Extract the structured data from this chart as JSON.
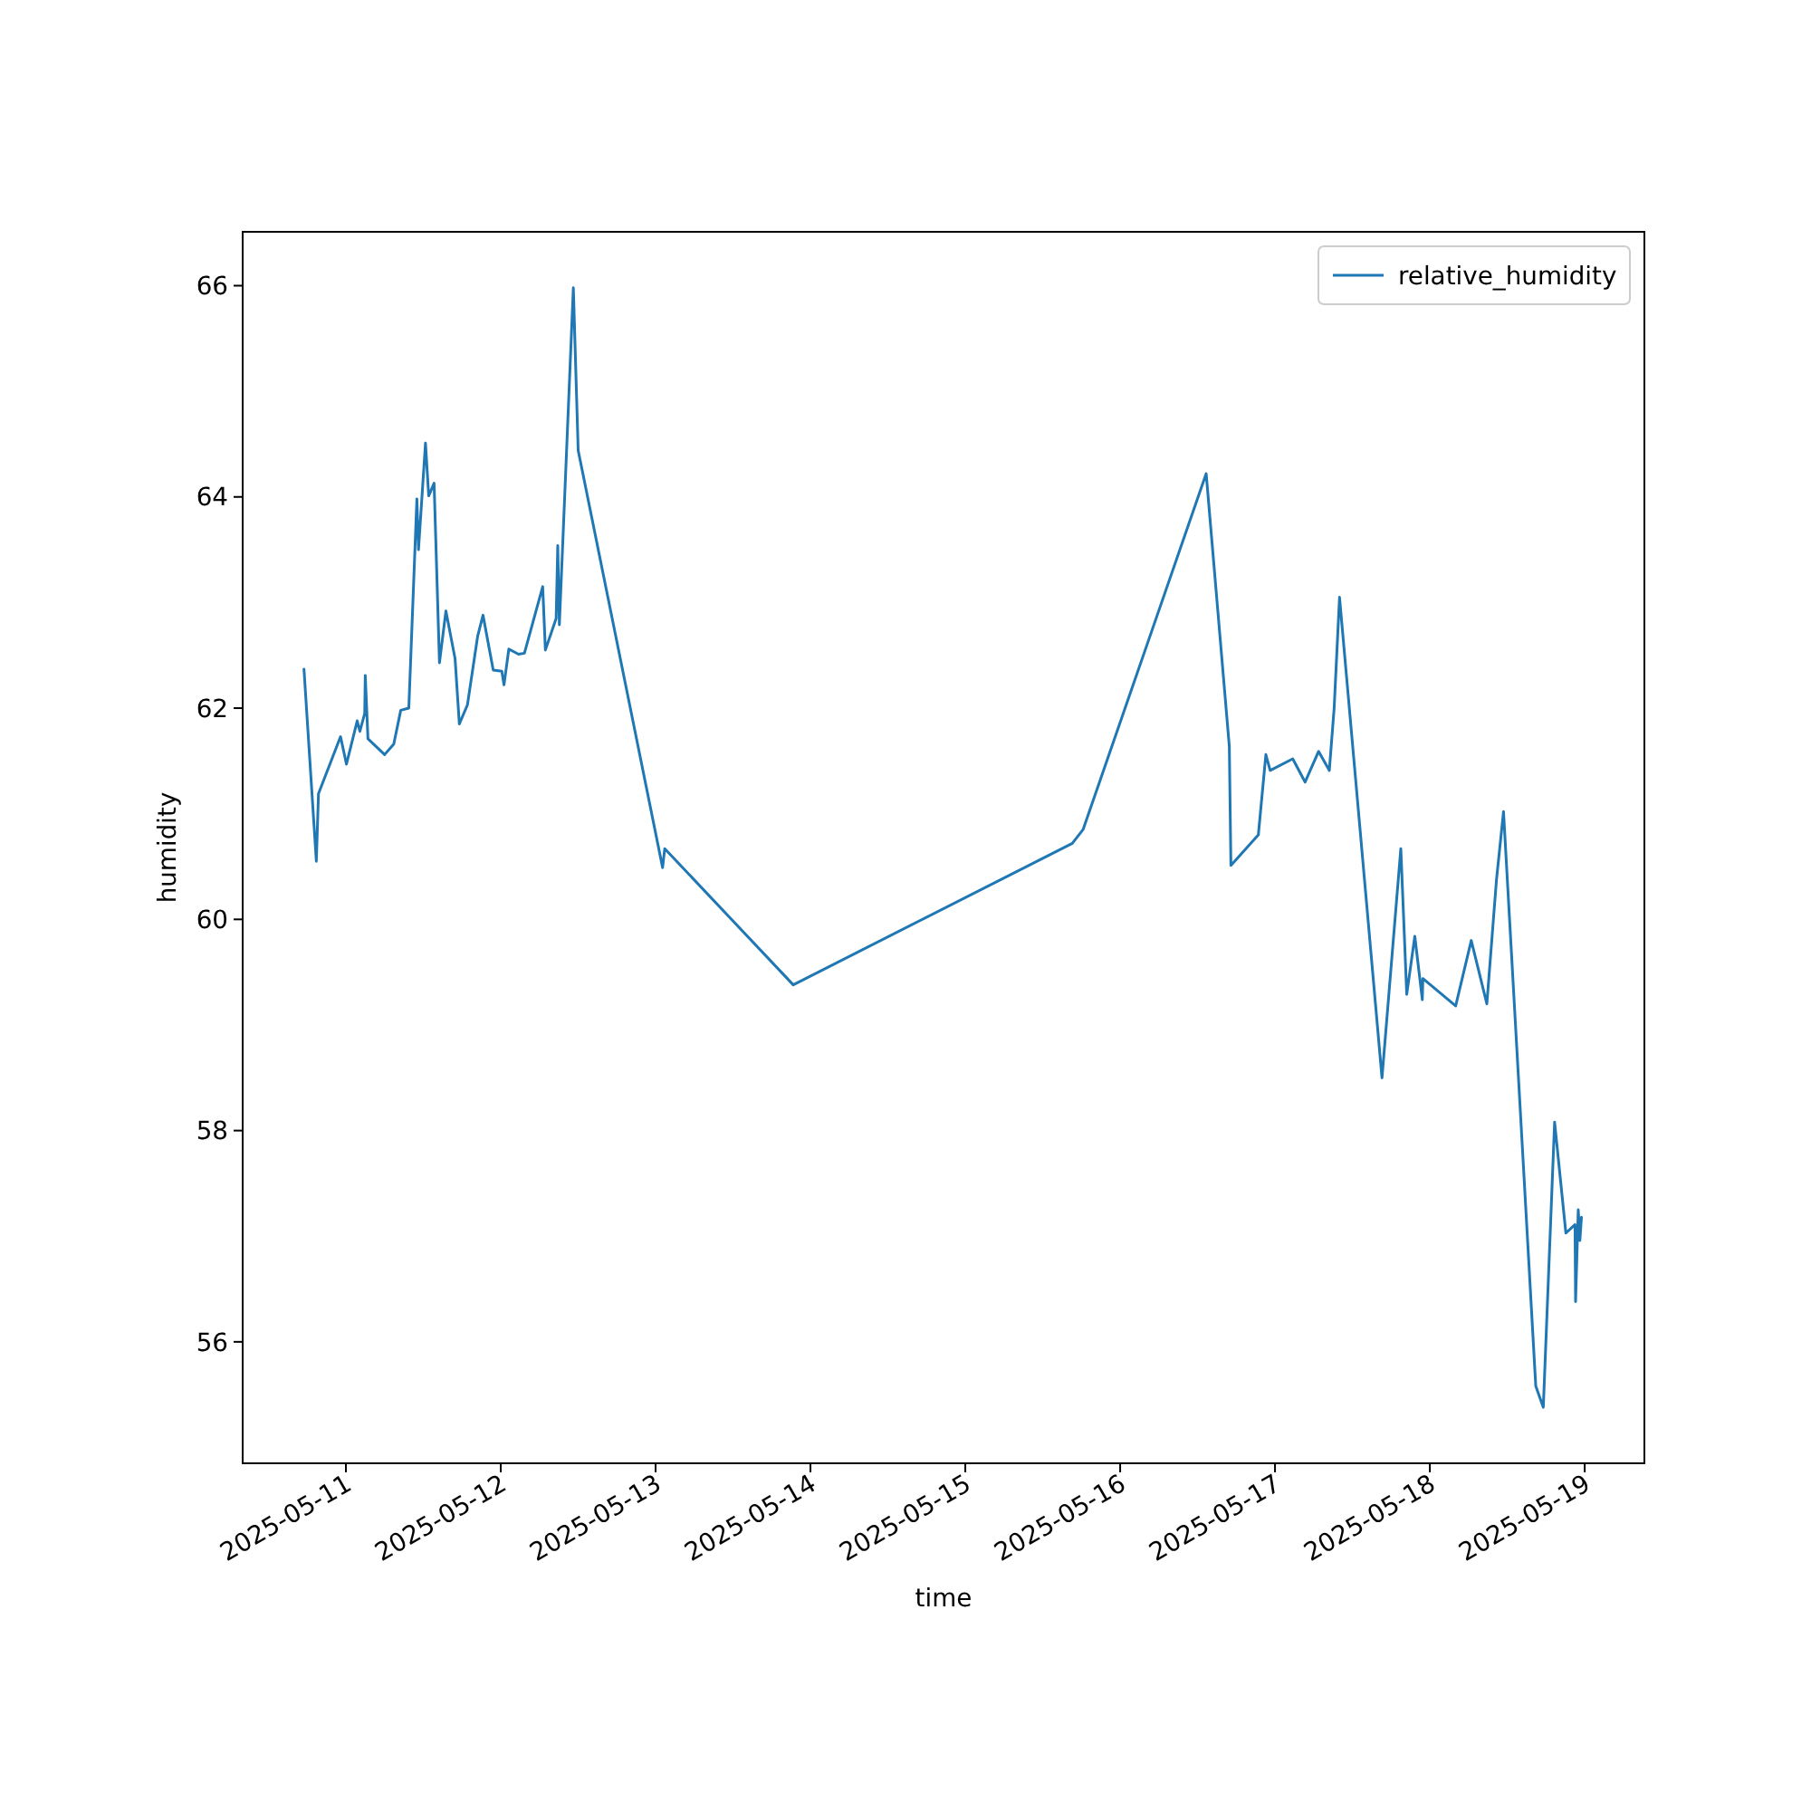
{
  "chart_data": {
    "type": "line",
    "xlabel": "time",
    "ylabel": "humidity",
    "legend": "top right",
    "grid": false,
    "marker": "none",
    "line_style": "solid",
    "xlim": [
      "2025-05-10T08:00",
      "2025-05-19T09:15"
    ],
    "xticks": [
      "2025-05-11",
      "2025-05-12",
      "2025-05-13",
      "2025-05-14",
      "2025-05-15",
      "2025-05-16",
      "2025-05-17",
      "2025-05-18",
      "2025-05-19"
    ],
    "ylim": [
      54.85,
      66.51
    ],
    "yticks": [
      56,
      58,
      60,
      62,
      64,
      66
    ],
    "x": [
      "2025-05-10T17:30",
      "2025-05-10T19:25",
      "2025-05-10T19:45",
      "2025-05-10T23:10",
      "2025-05-11T00:05",
      "2025-05-11T01:45",
      "2025-05-11T02:10",
      "2025-05-11T02:55",
      "2025-05-11T03:00",
      "2025-05-11T03:25",
      "2025-05-11T06:00",
      "2025-05-11T07:25",
      "2025-05-11T08:30",
      "2025-05-11T09:45",
      "2025-05-11T11:00",
      "2025-05-11T11:15",
      "2025-05-11T12:20",
      "2025-05-11T12:50",
      "2025-05-11T13:40",
      "2025-05-11T14:30",
      "2025-05-11T15:30",
      "2025-05-11T16:55",
      "2025-05-11T17:35",
      "2025-05-11T18:50",
      "2025-05-11T20:25",
      "2025-05-11T21:15",
      "2025-05-11T22:50",
      "2025-05-12T00:10",
      "2025-05-12T00:30",
      "2025-05-12T01:15",
      "2025-05-12T02:45",
      "2025-05-12T03:40",
      "2025-05-12T06:30",
      "2025-05-12T06:55",
      "2025-05-12T08:35",
      "2025-05-12T08:50",
      "2025-05-12T09:05",
      "2025-05-12T11:15",
      "2025-05-12T12:00",
      "2025-05-13T01:05",
      "2025-05-13T01:25",
      "2025-05-13T21:20",
      "2025-05-15T16:35",
      "2025-05-15T18:15",
      "2025-05-16T13:20",
      "2025-05-16T16:55",
      "2025-05-16T17:10",
      "2025-05-16T21:25",
      "2025-05-16T22:35",
      "2025-05-16T23:15",
      "2025-05-17T02:45",
      "2025-05-17T04:40",
      "2025-05-17T06:45",
      "2025-05-17T08:25",
      "2025-05-17T09:10",
      "2025-05-17T10:00",
      "2025-05-17T16:35",
      "2025-05-17T19:30",
      "2025-05-17T20:25",
      "2025-05-17T21:40",
      "2025-05-17T22:50",
      "2025-05-17T22:55",
      "2025-05-18T04:00",
      "2025-05-18T06:25",
      "2025-05-18T08:50",
      "2025-05-18T10:20",
      "2025-05-18T11:25",
      "2025-05-18T16:25",
      "2025-05-18T17:35",
      "2025-05-18T19:20",
      "2025-05-18T21:05",
      "2025-05-18T22:30",
      "2025-05-18T22:35",
      "2025-05-18T23:00",
      "2025-05-18T23:15",
      "2025-05-18T23:30"
    ],
    "series": [
      {
        "name": "relative_humidity",
        "color": "#1f77b4",
        "values": [
          62.37,
          60.55,
          61.19,
          61.73,
          61.47,
          61.88,
          61.78,
          61.95,
          62.31,
          61.71,
          61.56,
          61.66,
          61.98,
          62.0,
          63.98,
          63.5,
          64.51,
          64.01,
          64.13,
          62.43,
          62.92,
          62.47,
          61.85,
          62.03,
          62.68,
          62.88,
          62.36,
          62.35,
          62.22,
          62.56,
          62.51,
          62.52,
          63.15,
          62.55,
          62.85,
          63.54,
          62.79,
          65.98,
          64.44,
          60.49,
          60.67,
          59.38,
          60.72,
          60.85,
          64.22,
          61.64,
          60.51,
          60.8,
          61.56,
          61.41,
          61.52,
          61.3,
          61.59,
          61.41,
          62.0,
          63.05,
          58.5,
          60.67,
          59.29,
          59.84,
          59.24,
          59.44,
          59.18,
          59.8,
          59.2,
          60.38,
          61.02,
          55.58,
          55.38,
          58.08,
          57.03,
          57.11,
          56.38,
          57.25,
          56.96,
          57.18
        ]
      }
    ]
  }
}
